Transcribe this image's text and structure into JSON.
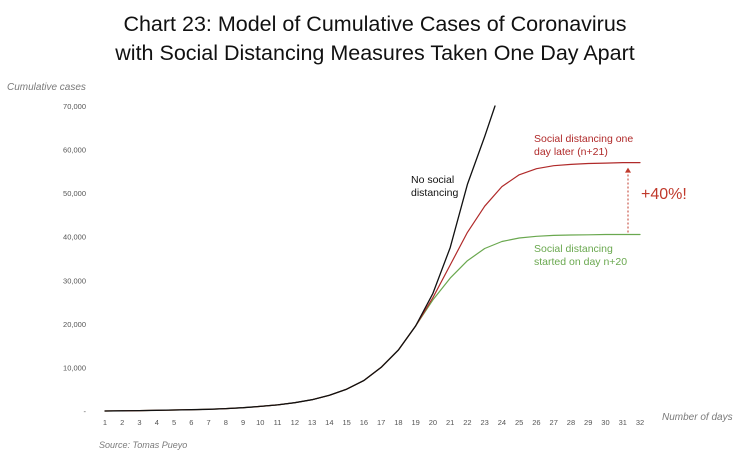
{
  "chart_data": {
    "type": "line",
    "title": [
      "Chart 23: Model of Cumulative Cases of Coronavirus",
      "with Social Distancing Measures Taken One Day Apart"
    ],
    "ylabel": "Cumulative cases",
    "xlabel": "Number of days",
    "source": "Source: Tomas Pueyo",
    "xlim": [
      1,
      32
    ],
    "ylim": [
      0,
      70000
    ],
    "yticks": [
      0,
      10000,
      20000,
      30000,
      40000,
      50000,
      60000,
      70000
    ],
    "ytick_labels": [
      "-",
      "10,000",
      "20,000",
      "30,000",
      "40,000",
      "50,000",
      "60,000",
      "70,000"
    ],
    "x": [
      1,
      2,
      3,
      4,
      5,
      6,
      7,
      8,
      9,
      10,
      11,
      12,
      13,
      14,
      15,
      16,
      17,
      18,
      19,
      20,
      21,
      22,
      23,
      24,
      25,
      26,
      27,
      28,
      29,
      30,
      31,
      32
    ],
    "series": [
      {
        "name": "No social distancing",
        "label_lines": [
          "No social",
          "distancing"
        ],
        "color": "#111111",
        "x": [
          1,
          2,
          3,
          4,
          5,
          6,
          7,
          8,
          9,
          10,
          11,
          12,
          13,
          14,
          15,
          16,
          17,
          18,
          19,
          20,
          21,
          22,
          23,
          23.6
        ],
        "values": [
          0,
          40,
          90,
          150,
          220,
          300,
          400,
          550,
          750,
          1050,
          1400,
          1900,
          2600,
          3600,
          5000,
          7000,
          10000,
          14000,
          19500,
          27000,
          37500,
          52000,
          63000,
          70000
        ]
      },
      {
        "name": "Social distancing one day later (n+21)",
        "label_lines": [
          "Social distancing one",
          "day later (n+21)"
        ],
        "color": "#b02a2a",
        "x": [
          1,
          2,
          3,
          4,
          5,
          6,
          7,
          8,
          9,
          10,
          11,
          12,
          13,
          14,
          15,
          16,
          17,
          18,
          19,
          20,
          21,
          22,
          23,
          24,
          25,
          26,
          27,
          28,
          29,
          30,
          31,
          32
        ],
        "values": [
          0,
          40,
          90,
          150,
          220,
          300,
          400,
          550,
          750,
          1050,
          1400,
          1900,
          2600,
          3600,
          5000,
          7000,
          10000,
          14000,
          19500,
          26000,
          33500,
          41000,
          47000,
          51500,
          54200,
          55600,
          56300,
          56600,
          56800,
          56900,
          57000,
          57000
        ]
      },
      {
        "name": "Social distancing started on day n+20",
        "label_lines": [
          "Social distancing",
          "started on day n+20"
        ],
        "color": "#6aa84f",
        "x": [
          1,
          2,
          3,
          4,
          5,
          6,
          7,
          8,
          9,
          10,
          11,
          12,
          13,
          14,
          15,
          16,
          17,
          18,
          19,
          20,
          21,
          22,
          23,
          24,
          25,
          26,
          27,
          28,
          29,
          30,
          31,
          32
        ],
        "values": [
          0,
          40,
          90,
          150,
          220,
          300,
          400,
          550,
          750,
          1050,
          1400,
          1900,
          2600,
          3600,
          5000,
          7000,
          10000,
          14000,
          19500,
          25500,
          30500,
          34500,
          37300,
          38900,
          39700,
          40100,
          40300,
          40400,
          40450,
          40500,
          40500,
          40500
        ]
      }
    ],
    "annotations": [
      {
        "text": "+40%!",
        "color": "#c0392b",
        "x": 32,
        "from": 40500,
        "to": 57000
      }
    ]
  }
}
